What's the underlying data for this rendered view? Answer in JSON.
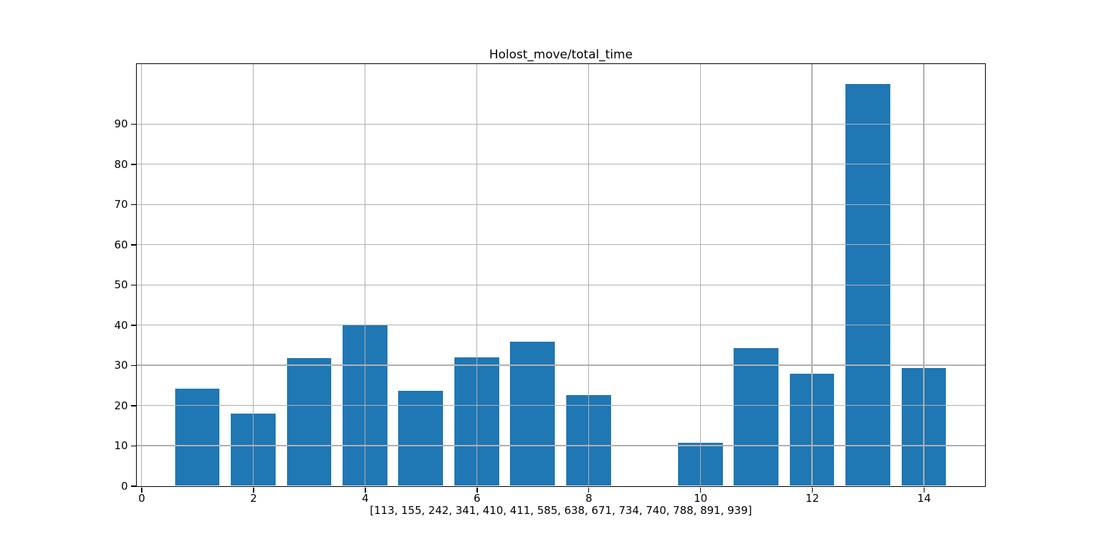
{
  "figure": {
    "title": "Holost_move/total_time",
    "xlabel": "[113, 155, 242, 341, 410, 411, 585, 638, 671, 734, 740, 788, 891, 939]"
  },
  "chart_data": {
    "type": "bar",
    "title": "Holost_move/total_time",
    "xlabel": "[113, 155, 242, 341, 410, 411, 585, 638, 671, 734, 740, 788, 891, 939]",
    "ylabel": "",
    "x": [
      1,
      2,
      3,
      4,
      5,
      6,
      7,
      8,
      9,
      10,
      11,
      12,
      13,
      14
    ],
    "values": [
      24.2,
      17.9,
      31.8,
      39.9,
      23.7,
      31.9,
      35.8,
      22.5,
      0,
      10.7,
      34.3,
      27.9,
      99.9,
      29.3
    ],
    "categories": [
      "113",
      "155",
      "242",
      "341",
      "410",
      "411",
      "585",
      "638",
      "671",
      "734",
      "740",
      "788",
      "891",
      "939"
    ],
    "bar_width": 0.8,
    "bar_color": "#1f77b4",
    "grid": true,
    "grid_color": "#b0b0b0",
    "grid_above_bars": true,
    "xlim": [
      -0.09,
      15.09
    ],
    "ylim": [
      0,
      105
    ],
    "xticks": [
      0,
      2,
      4,
      6,
      8,
      10,
      12,
      14
    ],
    "yticks": [
      0,
      10,
      20,
      30,
      40,
      50,
      60,
      70,
      80,
      90
    ],
    "legend_position": "none",
    "background_color": "#ffffff",
    "spine_color": "#000000"
  }
}
